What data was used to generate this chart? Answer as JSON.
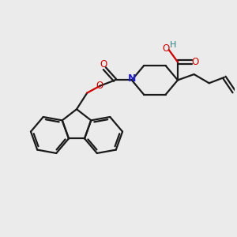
{
  "bg_color": "#ebebeb",
  "bond_color": "#1a1a1a",
  "oxygen_color": "#cc0000",
  "nitrogen_color": "#2222cc",
  "hydrogen_color": "#2a8080",
  "line_width": 1.6,
  "figsize": [
    3.0,
    3.0
  ],
  "dpi": 100,
  "xlim": [
    0,
    10
  ],
  "ylim": [
    0,
    10
  ]
}
